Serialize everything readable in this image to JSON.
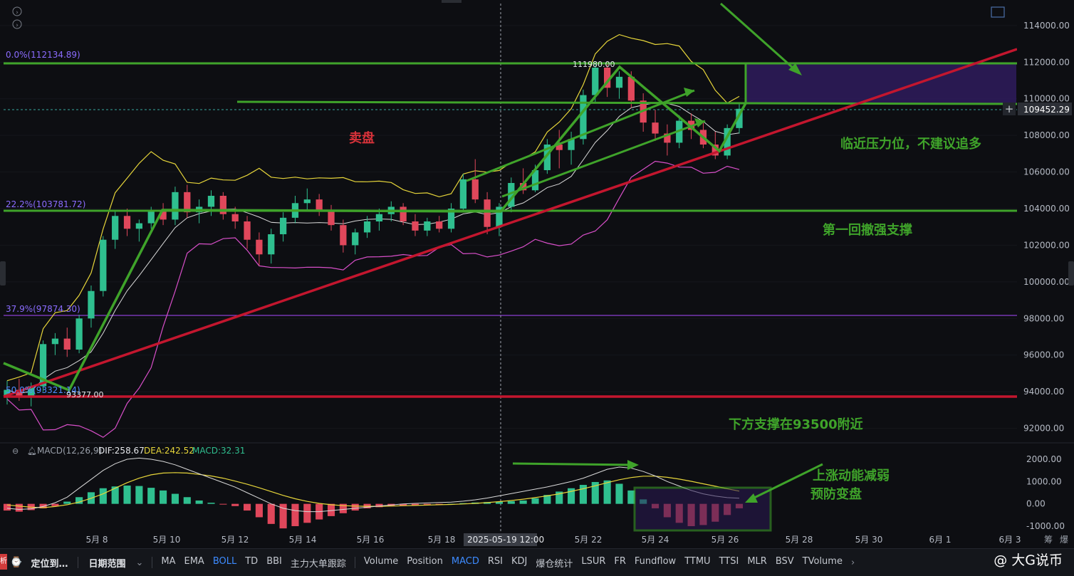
{
  "chart_data": {
    "type": "candlestick",
    "symbol_price": "109452.29",
    "price_axis": {
      "ticks": [
        "114000.00",
        "112000.00",
        "110000.00",
        "108000.00",
        "106000.00",
        "104000.00",
        "102000.00",
        "100000.00",
        "98000.00",
        "96000.00",
        "94000.00",
        "92000.00"
      ],
      "ylim": [
        91400,
        115200
      ]
    },
    "time_axis": {
      "labels": [
        "5月 8",
        "5月 10",
        "5月 12",
        "5月 14",
        "5月 16",
        "5月 18",
        "5月 22",
        "5月 24",
        "5月 26",
        "5月 28",
        "5月 30",
        "6月 1",
        "6月 3"
      ],
      "crosshair_label": "2025-05-19 12:00"
    },
    "fib_levels": [
      {
        "label": "0.0%(112134.89)",
        "value": 112134.89
      },
      {
        "label": "22.2%(103781.72)",
        "value": 103781.72
      },
      {
        "label": "37.9%(97874.30)",
        "value": 97874.3
      },
      {
        "label": "50.0%(93321.14)",
        "value": 93321.14
      }
    ],
    "price_markers": [
      "111980.00",
      "93377.00"
    ],
    "annotations": {
      "sell": "卖盘",
      "near_resistance": "临近压力位，不建议追多",
      "first_pullback": "第一回撤强支撑",
      "support_below": "下方支撑在93500附近",
      "momentum": "上涨动能减弱",
      "prevent": "预防变盘"
    },
    "candles": [
      [
        93800,
        94600,
        93300,
        94100
      ],
      [
        94100,
        94700,
        93500,
        93700
      ],
      [
        93700,
        94500,
        93200,
        94300
      ],
      [
        94300,
        96800,
        94000,
        96600
      ],
      [
        96600,
        97200,
        96000,
        96900
      ],
      [
        96900,
        97500,
        95900,
        96300
      ],
      [
        96300,
        98200,
        96100,
        98000
      ],
      [
        98000,
        99800,
        97500,
        99500
      ],
      [
        99500,
        102500,
        99200,
        102300
      ],
      [
        102300,
        103900,
        101800,
        103600
      ],
      [
        103600,
        104000,
        102500,
        102900
      ],
      [
        102900,
        103400,
        102200,
        103200
      ],
      [
        103200,
        104100,
        102900,
        103900
      ],
      [
        103900,
        104300,
        103100,
        103400
      ],
      [
        103400,
        105200,
        103100,
        104900
      ],
      [
        104900,
        105300,
        103500,
        103800
      ],
      [
        103800,
        104500,
        103200,
        104100
      ],
      [
        104100,
        105000,
        103600,
        104700
      ],
      [
        104700,
        104900,
        103400,
        103700
      ],
      [
        103700,
        104100,
        102900,
        103300
      ],
      [
        103300,
        103600,
        101800,
        102300
      ],
      [
        102300,
        102700,
        100900,
        101500
      ],
      [
        101500,
        102900,
        101000,
        102600
      ],
      [
        102600,
        103800,
        102200,
        103500
      ],
      [
        103500,
        104700,
        103200,
        104300
      ],
      [
        104300,
        105100,
        103900,
        104500
      ],
      [
        104500,
        104800,
        103600,
        103900
      ],
      [
        103900,
        104200,
        102800,
        103100
      ],
      [
        103100,
        103400,
        101600,
        102000
      ],
      [
        102000,
        102900,
        101500,
        102700
      ],
      [
        102700,
        103600,
        102400,
        103300
      ],
      [
        103300,
        104000,
        102800,
        103700
      ],
      [
        103700,
        104400,
        103300,
        104100
      ],
      [
        104100,
        104300,
        103100,
        103300
      ],
      [
        103300,
        103700,
        102500,
        102800
      ],
      [
        102800,
        103500,
        102500,
        103300
      ],
      [
        103300,
        103600,
        102700,
        102900
      ],
      [
        102900,
        104300,
        102700,
        104000
      ],
      [
        104000,
        105900,
        103800,
        105600
      ],
      [
        105600,
        106700,
        104300,
        104500
      ],
      [
        104500,
        104900,
        102600,
        103000
      ],
      [
        103000,
        104300,
        102500,
        104100
      ],
      [
        104100,
        105700,
        103800,
        105400
      ],
      [
        105400,
        106200,
        104800,
        105000
      ],
      [
        105000,
        106400,
        104900,
        106100
      ],
      [
        106100,
        107800,
        105900,
        107500
      ],
      [
        107500,
        108300,
        106200,
        107200
      ],
      [
        107200,
        108200,
        106400,
        107800
      ],
      [
        107800,
        110500,
        107500,
        110200
      ],
      [
        110200,
        111980,
        109800,
        111700
      ],
      [
        111700,
        111900,
        110100,
        110600
      ],
      [
        110600,
        111500,
        110000,
        111200
      ],
      [
        111200,
        111500,
        109500,
        109900
      ],
      [
        109900,
        110300,
        108200,
        108700
      ],
      [
        108700,
        109400,
        107700,
        108100
      ],
      [
        108100,
        108600,
        106900,
        107600
      ],
      [
        107600,
        109100,
        107300,
        108800
      ],
      [
        108800,
        109200,
        107800,
        108300
      ],
      [
        108300,
        108700,
        107300,
        107500
      ],
      [
        107500,
        108200,
        106700,
        106900
      ],
      [
        106900,
        108600,
        106700,
        108400
      ],
      [
        108400,
        109700,
        108100,
        109452
      ]
    ]
  },
  "macd": {
    "label": "MACD(12,26,9)",
    "dif": "DIF:258.67",
    "dea": "DEA:242.52",
    "macd": "MACD:32.31",
    "ticks": [
      "2000.00",
      "1000.00",
      "0.00",
      "-1000.00"
    ],
    "hist": [
      -300,
      -350,
      -280,
      -200,
      -100,
      100,
      300,
      520,
      700,
      780,
      820,
      800,
      720,
      600,
      450,
      300,
      150,
      50,
      -20,
      -100,
      -300,
      -600,
      -900,
      -1100,
      -1000,
      -850,
      -700,
      -550,
      -420,
      -300,
      -200,
      -150,
      -100,
      -80,
      -60,
      -40,
      -20,
      0,
      30,
      60,
      80,
      100,
      120,
      150,
      250,
      400,
      550,
      700,
      850,
      980,
      1050,
      900,
      600,
      200,
      -200,
      -600,
      -850,
      -1000,
      -950,
      -800,
      -500,
      -200
    ],
    "dif_line": [
      -200,
      -250,
      -220,
      -120,
      50,
      300,
      700,
      1100,
      1500,
      1800,
      2000,
      2050,
      2000,
      1900,
      1750,
      1550,
      1350,
      1150,
      950,
      750,
      500,
      250,
      0,
      -200,
      -300,
      -350,
      -350,
      -300,
      -250,
      -200,
      -150,
      -100,
      -50,
      0,
      20,
      40,
      60,
      80,
      120,
      180,
      260,
      360,
      460,
      560,
      660,
      760,
      880,
      1000,
      1150,
      1350,
      1550,
      1650,
      1600,
      1450,
      1250,
      1000,
      800,
      600,
      450,
      350,
      280,
      250
    ],
    "dea_line": [
      -50,
      -100,
      -150,
      -170,
      -120,
      -40,
      80,
      250,
      450,
      700,
      950,
      1150,
      1300,
      1380,
      1400,
      1380,
      1320,
      1250,
      1150,
      1020,
      880,
      720,
      550,
      380,
      230,
      110,
      20,
      -40,
      -80,
      -100,
      -110,
      -110,
      -100,
      -85,
      -70,
      -55,
      -40,
      -25,
      -5,
      20,
      55,
      100,
      150,
      210,
      280,
      360,
      450,
      560,
      680,
      810,
      950,
      1080,
      1180,
      1240,
      1240,
      1190,
      1110,
      1010,
      900,
      790,
      680,
      570
    ]
  },
  "toolbar": {
    "locate": "定位到…",
    "range": "日期范围",
    "indicators_left": [
      "MA",
      "EMA",
      "BOLL",
      "TD",
      "BBI",
      "主力大单跟踪"
    ],
    "indicators_right": [
      "Volume",
      "Position",
      "MACD",
      "RSI",
      "KDJ",
      "爆仓统计",
      "LSUR",
      "FR",
      "Fundflow",
      "TTMU",
      "TTSI",
      "MLR",
      "BSV",
      "TVolume"
    ],
    "active": [
      "BOLL",
      "MACD"
    ]
  },
  "watermark": "@ 大G说币",
  "right_edge_chars": [
    "筹",
    "爆"
  ],
  "colors": {
    "up": "#2fbf8f",
    "down": "#e0475b",
    "green_line": "#3fa32a",
    "red_line": "#c3162e",
    "fib": "#8a3fd1",
    "boll_upper": "#e6d53a",
    "boll_mid": "#d9d9d9",
    "boll_lower": "#d84fc9"
  }
}
